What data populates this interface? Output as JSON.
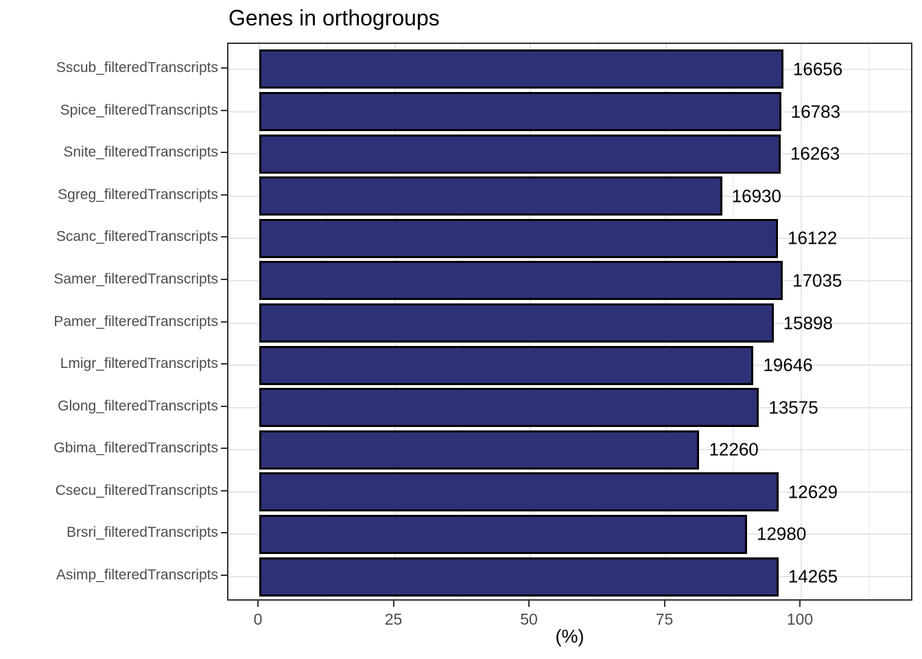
{
  "chart_data": {
    "type": "bar",
    "orientation": "horizontal",
    "title": "Genes in orthogroups",
    "xlabel": "(%)",
    "ylabel": "",
    "legend": "none",
    "grid": "on",
    "x_ticks": [
      0,
      25,
      50,
      75,
      100
    ],
    "x_minor_ticks": [
      12.5,
      37.5,
      62.5,
      87.5,
      112.5
    ],
    "xlim": [
      -5.7,
      120.8
    ],
    "categories": [
      "Sscub_filteredTranscripts",
      "Spice_filteredTranscripts",
      "Snite_filteredTranscripts",
      "Sgreg_filteredTranscripts",
      "Scanc_filteredTranscripts",
      "Samer_filteredTranscripts",
      "Pamer_filteredTranscripts",
      "Lmigr_filteredTranscripts",
      "Glong_filteredTranscripts",
      "Gbima_filteredTranscripts",
      "Csecu_filteredTranscripts",
      "Brsri_filteredTranscripts",
      "Asimp_filteredTranscripts"
    ],
    "values_percent": [
      96.7,
      96.3,
      96.2,
      85.4,
      95.7,
      96.6,
      94.9,
      91.2,
      92.2,
      81.2,
      95.8,
      90.0,
      95.8
    ],
    "bar_labels": [
      "16656",
      "16783",
      "16263",
      "16930",
      "16122",
      "17035",
      "15898",
      "19646",
      "13575",
      "12260",
      "12629",
      "12980",
      "14265"
    ],
    "colors": {
      "bar_fill": "#2d3278",
      "bar_stroke": "#000000",
      "grid_major": "#e6e6e6",
      "grid_minor": "#f2f2f2",
      "panel_border": "#333333",
      "axis_text": "#4d4d4d",
      "value_text": "#000000",
      "background": "#ffffff"
    }
  }
}
